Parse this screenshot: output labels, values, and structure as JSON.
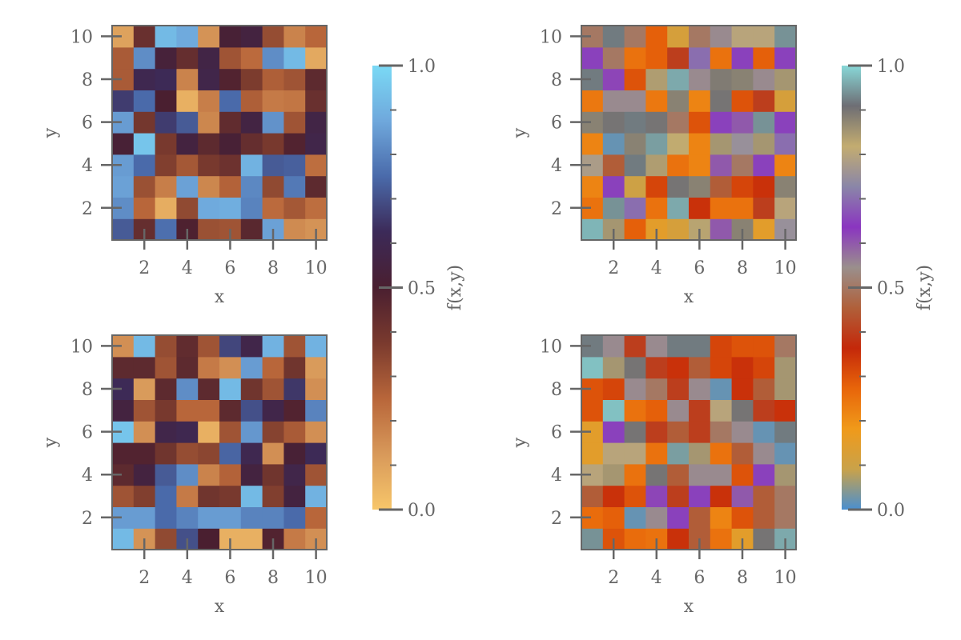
{
  "chart_data": {
    "type": "heatmap",
    "panels": [
      {
        "position": "top-left",
        "xlabel": "x",
        "ylabel": "y",
        "xticks": [
          "2",
          "4",
          "6",
          "8",
          "10"
        ],
        "yticks": [
          "2",
          "4",
          "6",
          "8",
          "10"
        ],
        "colormap": "warm-to-blue",
        "values": [
          [
            0.72,
            0.43,
            0.76,
            0.49,
            0.31,
            0.3,
            0.46,
            0.86,
            0.16,
            0.14
          ],
          [
            0.82,
            0.25,
            0.07,
            0.33,
            0.88,
            0.89,
            0.8,
            0.24,
            0.29,
            0.23
          ],
          [
            0.86,
            0.31,
            0.19,
            0.86,
            0.17,
            0.26,
            0.81,
            0.33,
            0.78,
            0.45
          ],
          [
            0.85,
            0.75,
            0.36,
            0.29,
            0.38,
            0.41,
            0.9,
            0.72,
            0.73,
            0.23
          ],
          [
            0.52,
            0.95,
            0.38,
            0.55,
            0.45,
            0.52,
            0.43,
            0.38,
            0.48,
            0.58
          ],
          [
            0.85,
            0.39,
            0.66,
            0.72,
            0.17,
            0.44,
            0.56,
            0.83,
            0.3,
            0.57
          ],
          [
            0.66,
            0.75,
            0.5,
            0.06,
            0.19,
            0.75,
            0.27,
            0.2,
            0.21,
            0.42
          ],
          [
            0.28,
            0.6,
            0.62,
            0.18,
            0.58,
            0.48,
            0.37,
            0.27,
            0.3,
            0.45
          ],
          [
            0.28,
            0.82,
            0.53,
            0.43,
            0.57,
            0.3,
            0.24,
            0.82,
            0.92,
            0.08
          ],
          [
            0.1,
            0.42,
            0.92,
            0.88,
            0.14,
            0.52,
            0.55,
            0.32,
            0.18,
            0.25
          ]
        ]
      },
      {
        "position": "bottom-left",
        "xlabel": "x",
        "ylabel": "y",
        "xticks": [
          "2",
          "4",
          "6",
          "8",
          "10"
        ],
        "yticks": [
          "2",
          "4",
          "6",
          "8",
          "10"
        ],
        "colormap": "warm-to-blue",
        "values": [
          [
            0.92,
            0.14,
            0.33,
            0.7,
            0.5,
            0.06,
            0.06,
            0.48,
            0.2,
            0.15
          ],
          [
            0.85,
            0.85,
            0.75,
            0.8,
            0.85,
            0.85,
            0.8,
            0.8,
            0.75,
            0.25
          ],
          [
            0.3,
            0.36,
            0.75,
            0.2,
            0.4,
            0.38,
            0.92,
            0.36,
            0.55,
            0.9
          ],
          [
            0.45,
            0.55,
            0.72,
            0.82,
            0.18,
            0.26,
            0.55,
            0.4,
            0.58,
            0.3
          ],
          [
            0.48,
            0.48,
            0.4,
            0.32,
            0.34,
            0.74,
            0.6,
            0.15,
            0.52,
            0.62
          ],
          [
            0.95,
            0.15,
            0.58,
            0.6,
            0.06,
            0.3,
            0.84,
            0.35,
            0.28,
            0.15
          ],
          [
            0.55,
            0.3,
            0.38,
            0.25,
            0.25,
            0.45,
            0.7,
            0.58,
            0.48,
            0.8
          ],
          [
            0.62,
            0.12,
            0.45,
            0.82,
            0.45,
            0.92,
            0.4,
            0.3,
            0.65,
            0.15
          ],
          [
            0.45,
            0.45,
            0.3,
            0.45,
            0.2,
            0.15,
            0.85,
            0.25,
            0.4,
            0.12
          ],
          [
            0.15,
            0.92,
            0.32,
            0.44,
            0.3,
            0.68,
            0.58,
            0.9,
            0.3,
            0.9
          ]
        ]
      },
      {
        "position": "top-right",
        "xlabel": "x",
        "ylabel": "y",
        "xticks": [
          "2",
          "4",
          "6",
          "8",
          "10"
        ],
        "yticks": [
          "2",
          "4",
          "6",
          "8",
          "10"
        ],
        "colormap": "multi",
        "values": [
          [
            0.97,
            0.85,
            0.28,
            0.15,
            0.12,
            0.83,
            0.6,
            0.88,
            0.15,
            0.75
          ],
          [
            0.25,
            0.94,
            0.7,
            0.25,
            0.96,
            0.35,
            0.25,
            0.25,
            0.4,
            0.8
          ],
          [
            0.22,
            0.65,
            0.1,
            0.32,
            0.9,
            0.88,
            0.45,
            0.32,
            0.35,
            0.88
          ],
          [
            0.78,
            0.45,
            0.92,
            0.84,
            0.25,
            0.22,
            0.6,
            0.5,
            0.65,
            0.22
          ],
          [
            0.22,
            0.02,
            0.88,
            0.95,
            0.82,
            0.22,
            0.85,
            0.75,
            0.85,
            0.7
          ],
          [
            0.88,
            0.9,
            0.92,
            0.9,
            0.5,
            0.3,
            0.65,
            0.6,
            0.94,
            0.65
          ],
          [
            0.24,
            0.55,
            0.55,
            0.24,
            0.88,
            0.22,
            0.9,
            0.3,
            0.4,
            0.12
          ],
          [
            0.92,
            0.62,
            0.3,
            0.84,
            0.96,
            0.55,
            0.89,
            0.88,
            0.55,
            0.85
          ],
          [
            0.65,
            0.5,
            0.25,
            0.28,
            0.4,
            0.7,
            0.25,
            0.65,
            0.28,
            0.65
          ],
          [
            0.5,
            0.92,
            0.5,
            0.28,
            0.12,
            0.5,
            0.55,
            0.8,
            0.8,
            0.94
          ]
        ]
      },
      {
        "position": "bottom-right",
        "xlabel": "x",
        "ylabel": "y",
        "xticks": [
          "2",
          "4",
          "6",
          "8",
          "10"
        ],
        "yticks": [
          "2",
          "4",
          "6",
          "8",
          "10"
        ],
        "colormap": "multi",
        "values": [
          [
            0.94,
            0.3,
            0.26,
            0.25,
            0.35,
            0.45,
            0.25,
            0.15,
            0.9,
            0.96
          ],
          [
            0.26,
            0.28,
            0.02,
            0.55,
            0.65,
            0.45,
            0.22,
            0.3,
            0.45,
            0.5
          ],
          [
            0.45,
            0.35,
            0.3,
            0.62,
            0.4,
            0.65,
            0.35,
            0.6,
            0.45,
            0.5
          ],
          [
            0.8,
            0.85,
            0.25,
            0.9,
            0.45,
            0.55,
            0.55,
            0.3,
            0.65,
            0.85
          ],
          [
            0.15,
            0.8,
            0.8,
            0.25,
            0.95,
            0.85,
            0.25,
            0.45,
            0.55,
            0.02
          ],
          [
            0.15,
            0.65,
            0.9,
            0.4,
            0.45,
            0.4,
            0.5,
            0.55,
            0.02,
            0.92
          ],
          [
            0.3,
            0.98,
            0.25,
            0.28,
            0.55,
            0.4,
            0.8,
            0.9,
            0.4,
            0.35
          ],
          [
            0.3,
            0.32,
            0.55,
            0.5,
            0.4,
            0.55,
            0.02,
            0.35,
            0.45,
            0.85
          ],
          [
            0.98,
            0.85,
            0.9,
            0.4,
            0.35,
            0.45,
            0.32,
            0.35,
            0.32,
            0.85
          ],
          [
            0.92,
            0.55,
            0.4,
            0.55,
            0.92,
            0.92,
            0.32,
            0.3,
            0.3,
            0.5
          ]
        ]
      }
    ],
    "colorbars": [
      {
        "position": "right-of-left-column",
        "label": "f(x,y)",
        "range": [
          0.0,
          1.0
        ],
        "major_ticks": [
          "0.0",
          "0.5",
          "1.0"
        ],
        "minor_step": 0.1,
        "colormap": "warm-to-blue"
      },
      {
        "position": "right-of-right-column",
        "label": "f(x,y)",
        "range": [
          0.0,
          1.0
        ],
        "major_ticks": [
          "0.0",
          "0.5",
          "1.0"
        ],
        "minor_step": 0.1,
        "colormap": "multi"
      }
    ],
    "colormaps": {
      "warm-to-blue": [
        "#f7c66a",
        "#d8995a",
        "#b8663a",
        "#7a3a2e",
        "#4a1f30",
        "#3c2a58",
        "#4a6aaa",
        "#6fa8dc",
        "#7ad9f5"
      ],
      "multi": [
        "#4a8fd0",
        "#c9a24a",
        "#f09a1a",
        "#e8650a",
        "#c4280a",
        "#b0603a",
        "#9a8f8c",
        "#8a35c0",
        "#8a86a8",
        "#c3ac70",
        "#6e6e74",
        "#88d8d8"
      ]
    },
    "axis_color": "#666666"
  }
}
